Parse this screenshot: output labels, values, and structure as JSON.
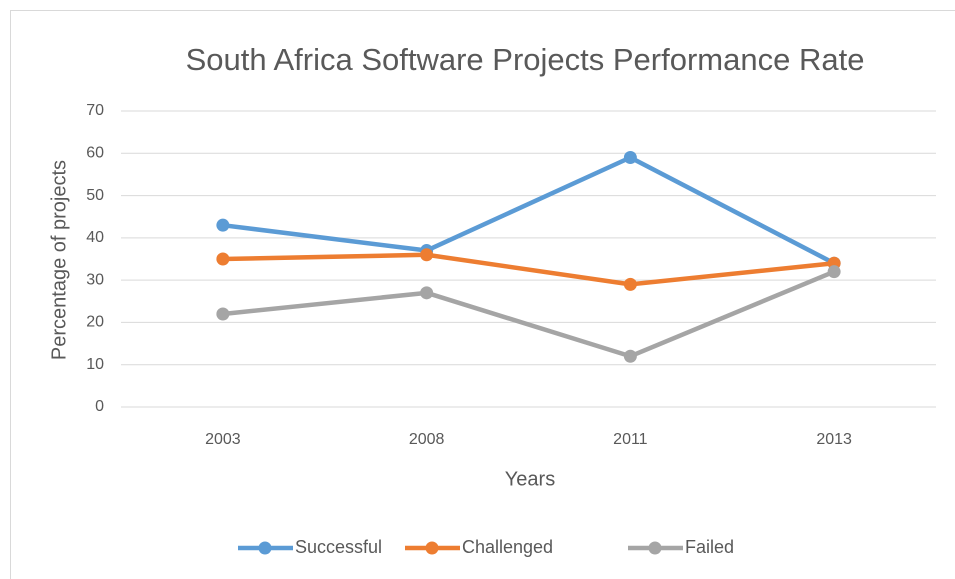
{
  "chart_data": {
    "type": "line",
    "title": "South Africa Software Projects Performance Rate",
    "x_label": "Years",
    "y_label": "Percentage of projects",
    "categories": [
      "2003",
      "2008",
      "2011",
      "2013"
    ],
    "series": [
      {
        "name": "Successful",
        "color": "#5b9bd5",
        "values": [
          43,
          37,
          59,
          34
        ]
      },
      {
        "name": "Challenged",
        "color": "#ed7d31",
        "values": [
          35,
          36,
          29,
          34
        ]
      },
      {
        "name": "Failed",
        "color": "#a5a5a5",
        "values": [
          22,
          27,
          12,
          32
        ]
      }
    ],
    "ylim": [
      0,
      70
    ],
    "yticks": [
      0,
      10,
      20,
      30,
      40,
      50,
      60,
      70
    ],
    "grid": true,
    "legend": "bottom"
  }
}
